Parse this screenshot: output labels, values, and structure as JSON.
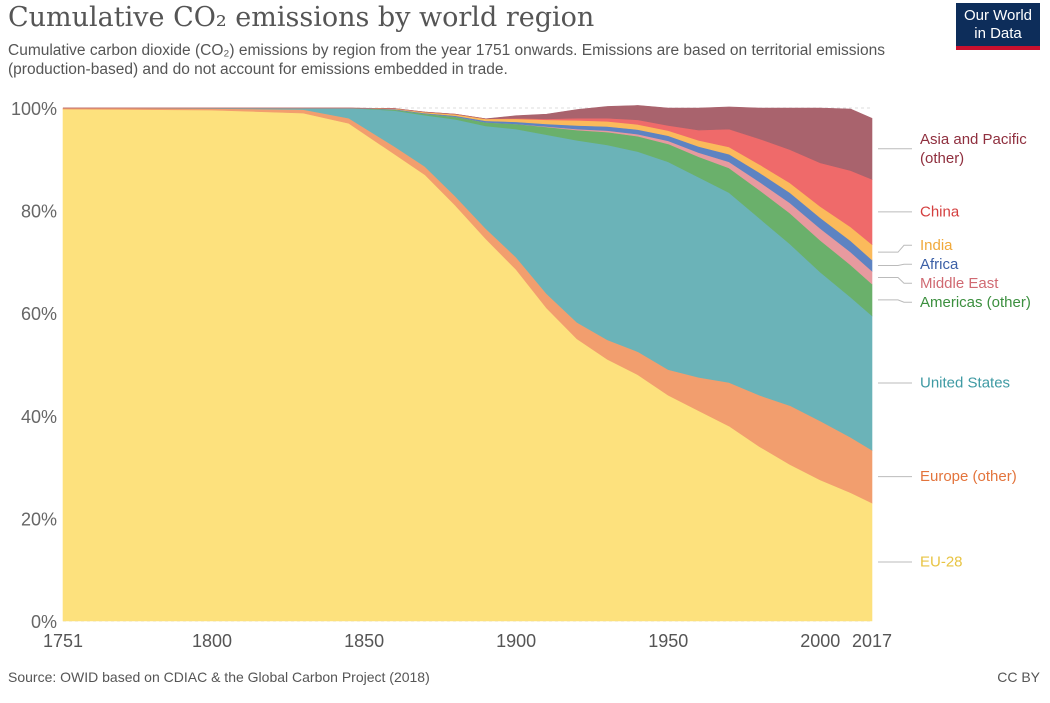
{
  "header": {
    "title": "Cumulative CO₂ emissions by world region",
    "subtitle": "Cumulative carbon dioxide (CO₂) emissions by region from the year 1751 onwards. Emissions are based on territorial emissions (production-based) and do not account for emissions embedded in trade.",
    "logo_line1": "Our World",
    "logo_line2": "in Data"
  },
  "footer": {
    "source": "Source: OWID based on CDIAC & the Global Carbon Project (2018)",
    "license": "CC BY"
  },
  "colors": {
    "logo_background": "#0d2d5a",
    "logo_accent": "#c8102e"
  },
  "chart_data": {
    "type": "area",
    "stacked": true,
    "x_axis_kind": "year",
    "xlim": [
      1751,
      2017
    ],
    "ylim": [
      0,
      100
    ],
    "grid": "horizontal dashed",
    "legend_placement": "right",
    "x_ticks": [
      1751,
      1800,
      1850,
      1900,
      1950,
      2000,
      2017
    ],
    "x_tick_labels": [
      "1751",
      "1800",
      "1850",
      "1900",
      "1950",
      "2000",
      "2017"
    ],
    "y_ticks": [
      0,
      20,
      40,
      60,
      80,
      100
    ],
    "y_tick_labels": [
      "0%",
      "20%",
      "40%",
      "60%",
      "80%",
      "100%"
    ],
    "x": [
      1751,
      1800,
      1830,
      1845,
      1860,
      1870,
      1880,
      1890,
      1900,
      1910,
      1920,
      1930,
      1940,
      1950,
      1960,
      1970,
      1980,
      1990,
      2000,
      2010,
      2017
    ],
    "series": [
      {
        "name": "EU-28",
        "color": "#fde17d",
        "label_color": "#e8c443",
        "values": [
          99.8,
          99.6,
          99.0,
          97.0,
          91.0,
          87.0,
          81.0,
          74.5,
          68.5,
          61.0,
          55.0,
          51.0,
          48.0,
          44.0,
          41.0,
          38.0,
          34.0,
          30.5,
          27.5,
          25.0,
          23.0
        ]
      },
      {
        "name": "Europe (other)",
        "color": "#f29e6e",
        "label_color": "#e3743c",
        "values": [
          0.2,
          0.3,
          0.7,
          1.0,
          1.5,
          1.6,
          1.8,
          2.0,
          2.4,
          2.8,
          3.2,
          3.8,
          4.5,
          5.0,
          6.5,
          8.5,
          10.0,
          11.5,
          11.5,
          10.8,
          10.3
        ]
      },
      {
        "name": "United States",
        "color": "#6bb3b8",
        "label_color": "#3e9aa3",
        "values": [
          0.0,
          0.1,
          0.3,
          2.0,
          7.0,
          10.0,
          15.0,
          20.0,
          25.0,
          31.0,
          35.5,
          38.0,
          39.0,
          40.5,
          39.0,
          37.0,
          34.5,
          31.5,
          29.0,
          27.3,
          26.2
        ]
      },
      {
        "name": "Americas (other)",
        "color": "#6ab06b",
        "label_color": "#3b8f3e",
        "values": [
          0.0,
          0.0,
          0.0,
          0.0,
          0.2,
          0.3,
          0.5,
          0.7,
          1.0,
          1.5,
          2.0,
          2.5,
          3.0,
          3.5,
          4.0,
          4.8,
          5.5,
          6.0,
          6.2,
          6.3,
          6.2
        ]
      },
      {
        "name": "Middle East",
        "color": "#e79a9f",
        "label_color": "#d06a72",
        "values": [
          0.0,
          0.0,
          0.0,
          0.0,
          0.0,
          0.0,
          0.0,
          0.0,
          0.0,
          0.1,
          0.2,
          0.3,
          0.4,
          0.6,
          0.8,
          1.2,
          1.6,
          2.0,
          2.3,
          2.5,
          2.5
        ]
      },
      {
        "name": "Africa",
        "color": "#5d83c2",
        "label_color": "#3b5fa6",
        "values": [
          0.0,
          0.0,
          0.0,
          0.0,
          0.1,
          0.1,
          0.2,
          0.3,
          0.4,
          0.5,
          0.7,
          0.8,
          0.9,
          1.0,
          1.2,
          1.5,
          1.8,
          2.0,
          2.1,
          2.2,
          2.2
        ]
      },
      {
        "name": "India",
        "color": "#fbba5b",
        "label_color": "#f0a93b",
        "values": [
          0.0,
          0.0,
          0.0,
          0.0,
          0.1,
          0.2,
          0.3,
          0.4,
          0.6,
          0.8,
          1.0,
          1.0,
          1.0,
          1.0,
          1.2,
          1.4,
          1.6,
          1.9,
          2.2,
          2.7,
          3.0
        ]
      },
      {
        "name": "China",
        "color": "#ef6a6a",
        "label_color": "#d43f3f",
        "values": [
          0.0,
          0.0,
          0.0,
          0.0,
          0.0,
          0.0,
          0.0,
          0.0,
          0.1,
          0.2,
          0.4,
          0.6,
          0.9,
          1.0,
          2.0,
          3.5,
          5.0,
          6.5,
          8.5,
          11.0,
          12.7
        ]
      },
      {
        "name": "Asia and Pacific (other)",
        "label_lines": [
          "Asia and Pacific",
          "(other)"
        ],
        "color": "#a9636d",
        "label_color": "#8f2f3e",
        "values": [
          0.0,
          0.0,
          0.0,
          0.0,
          0.0,
          0.0,
          0.0,
          0.0,
          0.5,
          0.9,
          1.7,
          2.3,
          2.8,
          3.4,
          4.3,
          4.3,
          6.0,
          8.1,
          10.7,
          12.0,
          11.9
        ]
      }
    ]
  }
}
